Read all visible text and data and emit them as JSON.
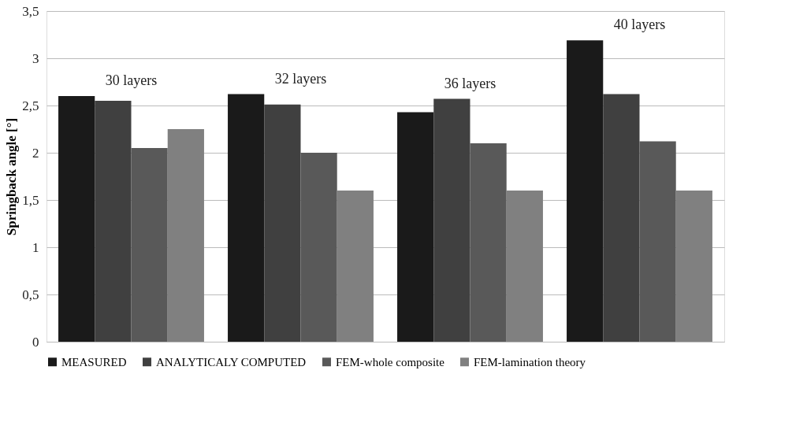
{
  "chart_data": {
    "type": "bar",
    "ylabel": "Springback angle [°]",
    "categories": [
      "30 layers",
      "32 layers",
      "36 layers",
      "40 layers"
    ],
    "series": [
      {
        "name": "MEASURED",
        "color": "#1a1a1a",
        "values": [
          2.6,
          2.62,
          2.43,
          3.19
        ]
      },
      {
        "name": "ANALYTICALY COMPUTED",
        "color": "#404040",
        "values": [
          2.55,
          2.51,
          2.57,
          2.62
        ]
      },
      {
        "name": "FEM-whole composite",
        "color": "#595959",
        "values": [
          2.05,
          2.0,
          2.1,
          2.12
        ]
      },
      {
        "name": "FEM-lamination theory",
        "color": "#808080",
        "values": [
          2.25,
          1.6,
          1.6,
          1.6
        ]
      }
    ],
    "ylim": [
      0,
      3.5
    ],
    "yticks": [
      0,
      {
        "value": 0.5,
        "label": "0,5"
      },
      1,
      {
        "value": 1.5,
        "label": "1,5"
      },
      2,
      {
        "value": 2.5,
        "label": "2,5"
      },
      3,
      {
        "value": 3.5,
        "label": "3,5"
      }
    ],
    "grid": "y",
    "legend": "bottom"
  }
}
